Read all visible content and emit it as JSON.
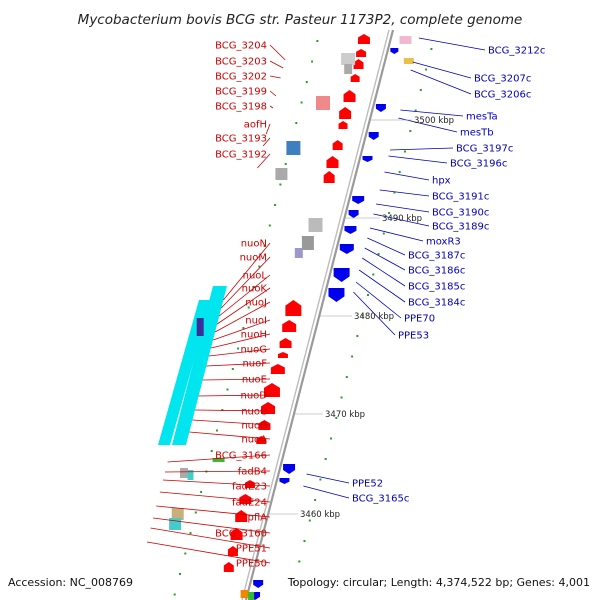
{
  "title": "Mycobacterium bovis BCG str. Pasteur 1173P2, complete genome",
  "footer": {
    "accession": "Accession: NC_008769",
    "summary": "Topology: circular; Length: 4,374,522 bp; Genes: 4,001"
  },
  "colors": {
    "left_labels": "#cc0000",
    "right_labels": "#0000bb",
    "forward_gene": "#ff0000",
    "reverse_gene": "#0000ee",
    "nuo_cluster": "#00e5ee",
    "tick": "#2aa02a",
    "backbone": "#9a9a9a"
  },
  "kbp_markers": [
    "3500 kbp",
    "3490 kbp",
    "3480 kbp",
    "3470 kbp",
    "3460 kbp"
  ],
  "left_labels": [
    "BCG_3204",
    "BCG_3203",
    "BCG_3202",
    "BCG_3199",
    "BCG_3198",
    "aofH",
    "BCG_3193",
    "BCG_3192",
    "nuoN",
    "nuoM",
    "nuoL",
    "nuoK",
    "nuoJ",
    "nuoI",
    "nuoH",
    "nuoG",
    "nuoF",
    "nuoE",
    "nuoD",
    "nuoC",
    "nuoB",
    "nuoA",
    "BCG_3166",
    "fadB4",
    "fadE23",
    "fadE24",
    "pflA",
    "BCG_3160",
    "PPE51",
    "PPE50"
  ],
  "right_labels": [
    "BCG_3212c",
    "BCG_3207c",
    "BCG_3206c",
    "mesTa",
    "mesTb",
    "BCG_3197c",
    "BCG_3196c",
    "hpx",
    "BCG_3191c",
    "BCG_3190c",
    "BCG_3189c",
    "moxR3",
    "BCG_3187c",
    "BCG_3186c",
    "BCG_3185c",
    "BCG_3184c",
    "PPE70",
    "PPE53",
    "PPE52",
    "BCG_3165c"
  ]
}
